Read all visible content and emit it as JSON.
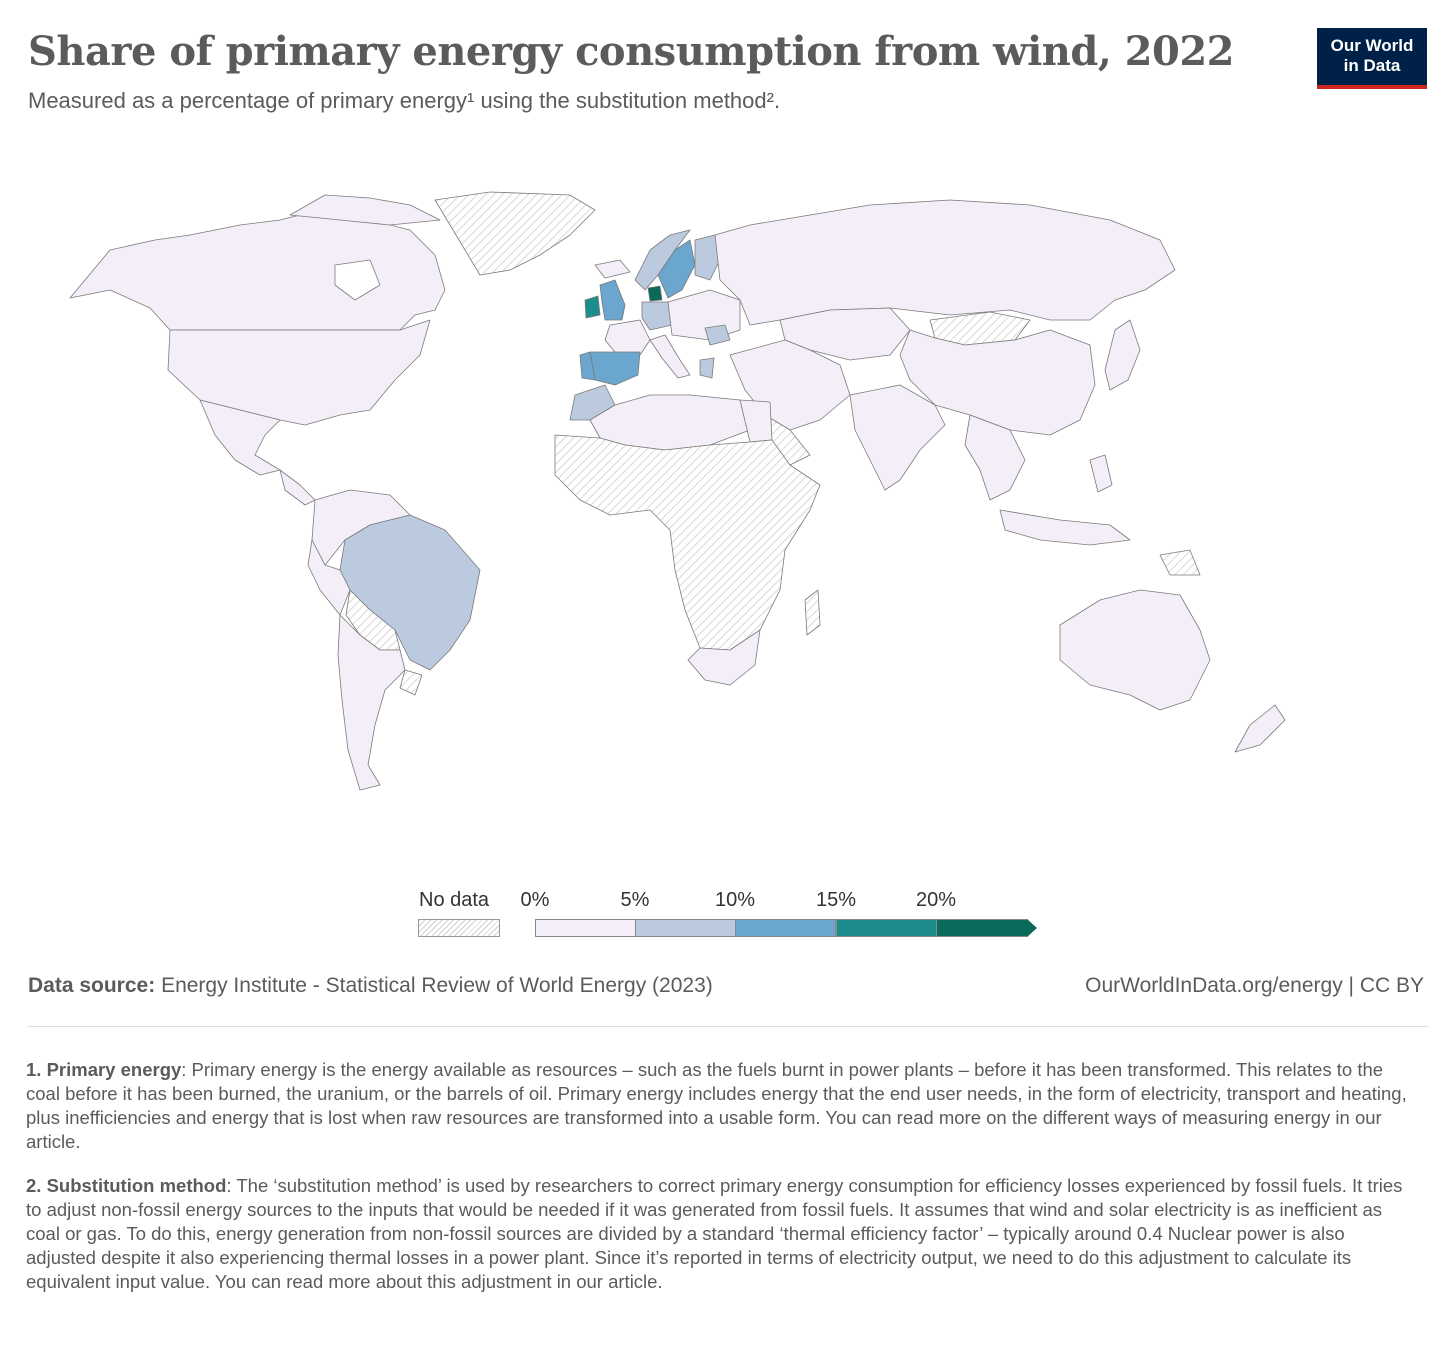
{
  "header": {
    "title": "Share of primary energy consumption from wind, 2022",
    "subtitle": "Measured as a percentage of primary energy¹ using the substitution method².",
    "logo_line1": "Our World",
    "logo_line2": "in Data"
  },
  "map": {
    "type": "choropleth",
    "year": "2022",
    "regions": [
      {
        "name": "Canada",
        "bin": "0-5%"
      },
      {
        "name": "United States",
        "bin": "0-5%"
      },
      {
        "name": "Mexico",
        "bin": "0-5%"
      },
      {
        "name": "Greenland",
        "bin": "No data"
      },
      {
        "name": "Brazil",
        "bin": "5-10%"
      },
      {
        "name": "Argentina",
        "bin": "0-5%"
      },
      {
        "name": "Chile",
        "bin": "0-5%"
      },
      {
        "name": "Peru",
        "bin": "0-5%"
      },
      {
        "name": "Colombia",
        "bin": "0-5%"
      },
      {
        "name": "Bolivia",
        "bin": "No data"
      },
      {
        "name": "Paraguay",
        "bin": "No data"
      },
      {
        "name": "Uruguay",
        "bin": "No data"
      },
      {
        "name": "United Kingdom",
        "bin": "10-15%"
      },
      {
        "name": "Ireland",
        "bin": "15-20%"
      },
      {
        "name": "Spain",
        "bin": "10-15%"
      },
      {
        "name": "Portugal",
        "bin": "10-15%"
      },
      {
        "name": "Denmark",
        "bin": ">20%"
      },
      {
        "name": "Sweden",
        "bin": "10-15%"
      },
      {
        "name": "Norway",
        "bin": "5-10%"
      },
      {
        "name": "Finland",
        "bin": "5-10%"
      },
      {
        "name": "Germany",
        "bin": "5-10%"
      },
      {
        "name": "Netherlands",
        "bin": "5-10%"
      },
      {
        "name": "France",
        "bin": "0-5%"
      },
      {
        "name": "Greece",
        "bin": "5-10%"
      },
      {
        "name": "Romania",
        "bin": "5-10%"
      },
      {
        "name": "Morocco",
        "bin": "5-10%"
      },
      {
        "name": "Russia",
        "bin": "0-5%"
      },
      {
        "name": "China",
        "bin": "0-5%"
      },
      {
        "name": "Mongolia",
        "bin": "No data"
      },
      {
        "name": "India",
        "bin": "0-5%"
      },
      {
        "name": "Australia",
        "bin": "0-5%"
      },
      {
        "name": "New Zealand",
        "bin": "0-5%"
      },
      {
        "name": "South Africa",
        "bin": "0-5%"
      },
      {
        "name": "Algeria",
        "bin": "0-5%"
      },
      {
        "name": "Egypt",
        "bin": "0-5%"
      },
      {
        "name": "Sub-Saharan Africa (most)",
        "bin": "No data"
      }
    ]
  },
  "legend": {
    "no_data_label": "No data",
    "ticks": [
      "0%",
      "5%",
      "10%",
      "15%",
      "20%"
    ],
    "bins": [
      {
        "range": "0-5%",
        "color": "#f3eef8"
      },
      {
        "range": "5-10%",
        "color": "#bccadf"
      },
      {
        "range": "10-15%",
        "color": "#6aa6cd"
      },
      {
        "range": "15-20%",
        "color": "#1d8c8c"
      },
      {
        "range": ">20%",
        "color": "#0b6a59"
      }
    ]
  },
  "colors": {
    "no_data_hatch": "#cfcfcf",
    "country_border": "#7a7a7a",
    "brand_navy": "#002147",
    "brand_red": "#ce261e"
  },
  "footer": {
    "source_label": "Data source:",
    "source_text": "Energy Institute - Statistical Review of World Energy (2023)",
    "link": "OurWorldInData.org/energy | CC BY"
  },
  "notes": [
    {
      "label": "1. Primary energy",
      "text": ": Primary energy is the energy available as resources – such as the fuels burnt in power plants – before it has been transformed. This relates to the coal before it has been burned, the uranium, or the barrels of oil. Primary energy includes energy that the end user needs, in the form of electricity, transport and heating, plus inefficiencies and energy that is lost when raw resources are transformed into a usable form. You can read more on the different ways of measuring energy in our article."
    },
    {
      "label": "2. Substitution method",
      "text": ": The ‘substitution method’ is used by researchers to correct primary energy consumption for efficiency losses experienced by fossil fuels. It tries to adjust non-fossil energy sources to the inputs that would be needed if it was generated from fossil fuels. It assumes that wind and solar electricity is as inefficient as coal or gas. To do this, energy generation from non-fossil sources are divided by a standard ‘thermal efficiency factor’ – typically around 0.4 Nuclear power is also adjusted despite it also experiencing thermal losses in a power plant. Since it’s reported in terms of electricity output, we need to do this adjustment to calculate its equivalent input value. You can read more about this adjustment in our article."
    }
  ]
}
